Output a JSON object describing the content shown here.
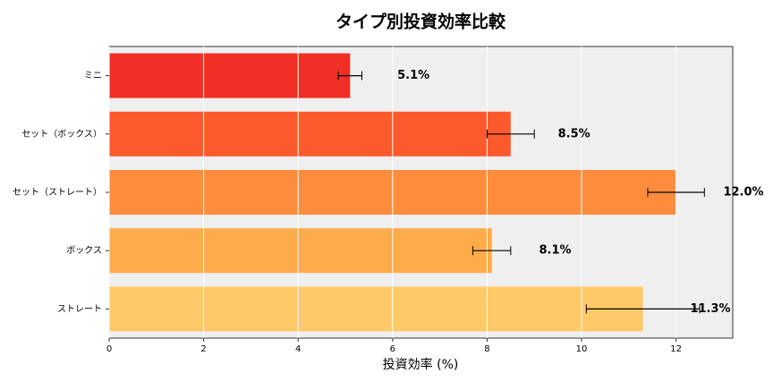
{
  "chart_data": {
    "type": "barh",
    "title": "タイプ別投資効率比較",
    "xlabel": "投資効率 (%)",
    "categories": [
      "ミニ",
      "セット（ボックス）",
      "セット（ストレート）",
      "ボックス",
      "ストレート"
    ],
    "values": [
      5.1,
      8.5,
      12.0,
      8.1,
      11.3
    ],
    "value_labels": [
      "5.1%",
      "8.5%",
      "12.0%",
      "8.1%",
      "11.3%"
    ],
    "errors": [
      0.25,
      0.5,
      0.6,
      0.4,
      1.2
    ],
    "colors": [
      "#f03024",
      "#fc5a2d",
      "#fd8d3c",
      "#feab4a",
      "#fec966"
    ],
    "xlim": [
      0,
      13.2
    ],
    "xticks": [
      0,
      2,
      4,
      6,
      8,
      10,
      12
    ],
    "grid": true
  }
}
